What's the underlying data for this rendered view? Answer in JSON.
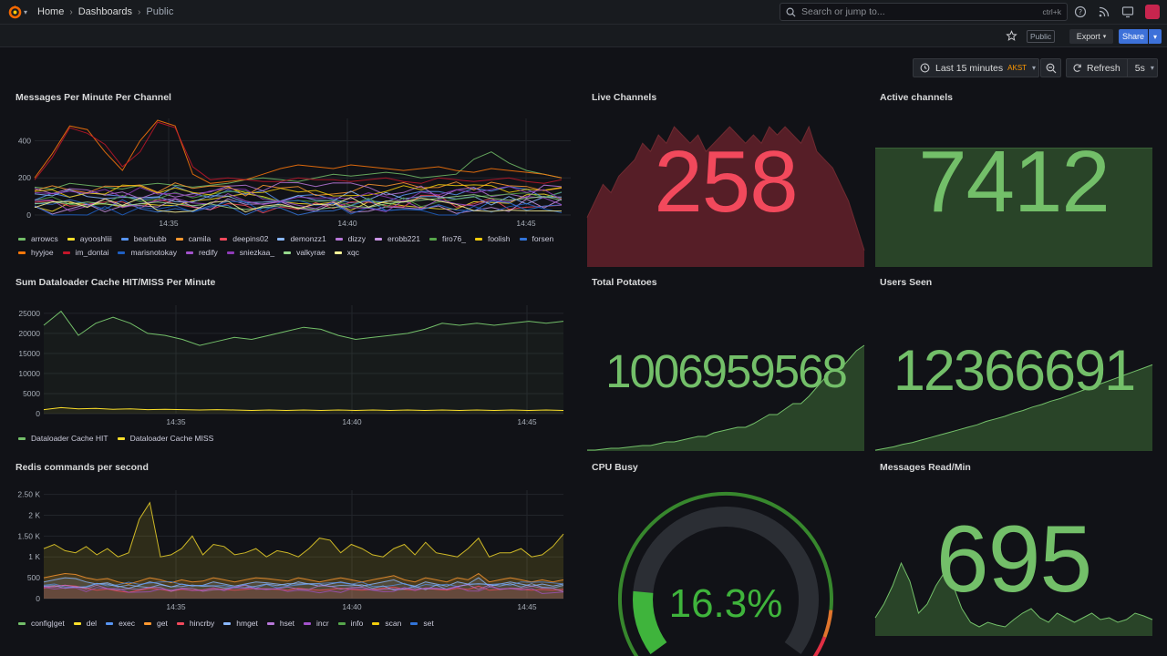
{
  "nav": {
    "breadcrumbs": [
      "Home",
      "Dashboards",
      "Public"
    ],
    "search_placeholder": "Search or jump to...",
    "search_shortcut": "ctrl+k"
  },
  "toolbar": {
    "public_tag": "Public",
    "export_label": "Export",
    "share_label": "Share",
    "time_range": "Last 15 minutes",
    "timezone": "AKST",
    "refresh_label": "Refresh",
    "refresh_interval": "5s"
  },
  "colors": {
    "green": "#73bf69",
    "red": "#f2495c",
    "yellow": "#fade2a",
    "blue": "#5794f2",
    "orange": "#ff9830",
    "purple": "#b877d9"
  },
  "panels": {
    "messages": {
      "title": "Messages Per Minute Per Channel",
      "legend": [
        "arrowcs",
        "ayooshliii",
        "bearbubb",
        "camila",
        "deepins02",
        "demonzz1",
        "dizzy",
        "erobb221",
        "firo76_",
        "foolish",
        "forsen",
        "hyyjoe",
        "im_dontai",
        "marisnotokay",
        "redify",
        "sniezkaa_",
        "valkyrae",
        "xqc"
      ],
      "legend_colors": [
        "#73bf69",
        "#fade2a",
        "#5794f2",
        "#ff9830",
        "#f2495c",
        "#8ab8ff",
        "#b877d9",
        "#ca95e5",
        "#56a64b",
        "#f2cc0c",
        "#3274d9",
        "#ff780a",
        "#c4162a",
        "#1f60c4",
        "#a352cc",
        "#8f3bb8",
        "#96d98d",
        "#fff899"
      ]
    },
    "live_channels": {
      "title": "Live Channels",
      "value": "258"
    },
    "active_channels": {
      "title": "Active channels",
      "value": "7412"
    },
    "cache": {
      "title": "Sum Dataloader Cache HIT/MISS Per Minute",
      "legend": [
        "Dataloader Cache HIT",
        "Dataloader Cache MISS"
      ],
      "legend_colors": [
        "#73bf69",
        "#fade2a"
      ]
    },
    "total_potatoes": {
      "title": "Total Potatoes",
      "value": "1006959568"
    },
    "users_seen": {
      "title": "Users Seen",
      "value": "12366691"
    },
    "redis": {
      "title": "Redis commands per second",
      "legend": [
        "config|get",
        "del",
        "exec",
        "get",
        "hincrby",
        "hmget",
        "hset",
        "incr",
        "info",
        "scan",
        "set"
      ],
      "legend_colors": [
        "#73bf69",
        "#fade2a",
        "#5794f2",
        "#ff9830",
        "#f2495c",
        "#8ab8ff",
        "#b877d9",
        "#a352cc",
        "#56a64b",
        "#f2cc0c",
        "#3274d9"
      ]
    },
    "cpu_busy": {
      "title": "CPU Busy",
      "value": "16.3%",
      "percent": 16.3
    },
    "messages_read": {
      "title": "Messages Read/Min",
      "value": "695"
    }
  },
  "chart_data": [
    {
      "type": "line",
      "title": "Messages Per Minute Per Channel",
      "x_ticks": [
        "14:35",
        "14:40",
        "14:45"
      ],
      "y_ticks": [
        "0",
        "200",
        "400"
      ],
      "ylim": [
        0,
        520
      ],
      "series_approx": {
        "im_dontai": [
          190,
          310,
          470,
          440,
          380,
          260,
          340,
          500,
          470,
          260,
          190,
          200,
          190,
          180,
          180,
          200,
          190,
          190,
          180,
          190,
          200,
          180,
          170,
          200,
          190,
          180,
          190,
          200,
          180,
          170,
          190
        ],
        "hyyjoe": [
          200,
          330,
          480,
          460,
          340,
          240,
          400,
          510,
          480,
          220,
          170,
          180,
          190,
          220,
          250,
          270,
          260,
          250,
          270,
          260,
          250,
          240,
          250,
          260,
          240,
          230,
          250,
          240,
          230,
          220,
          200
        ],
        "arrowcs": [
          150,
          140,
          170,
          160,
          150,
          140,
          160,
          170,
          160,
          150,
          160,
          170,
          190,
          200,
          190,
          180,
          200,
          220,
          210,
          220,
          230,
          220,
          200,
          210,
          220,
          300,
          340,
          280,
          240,
          220,
          200
        ],
        "valkyrae": [
          60,
          70,
          60,
          70,
          60,
          50,
          60,
          70,
          60,
          50,
          60,
          40,
          30,
          40,
          50,
          40,
          30,
          40,
          50,
          40,
          60,
          70,
          80,
          90,
          100,
          110,
          90,
          80,
          90,
          100,
          80
        ]
      }
    },
    {
      "type": "line",
      "title": "Sum Dataloader Cache HIT/MISS Per Minute",
      "x_ticks": [
        "14:35",
        "14:40",
        "14:45"
      ],
      "y_ticks": [
        "0",
        "5000",
        "10000",
        "15000",
        "20000",
        "25000"
      ],
      "ylim": [
        0,
        27000
      ],
      "series": [
        {
          "name": "Dataloader Cache HIT",
          "values": [
            22000,
            25500,
            19500,
            22500,
            24000,
            22500,
            20000,
            19500,
            18500,
            17000,
            18000,
            19000,
            18500,
            19500,
            20500,
            21500,
            21000,
            19500,
            18500,
            19000,
            19500,
            20000,
            21000,
            22500,
            22000,
            22500,
            22000,
            22500,
            23000,
            22500,
            23000
          ]
        },
        {
          "name": "Dataloader Cache MISS",
          "values": [
            1000,
            1500,
            1200,
            1300,
            1100,
            1200,
            1000,
            1100,
            1000,
            900,
            1000,
            900,
            800,
            900,
            800,
            900,
            800,
            900,
            800,
            900,
            800,
            900,
            800,
            900,
            800,
            900,
            800,
            900,
            800,
            900,
            800
          ]
        }
      ]
    },
    {
      "type": "area",
      "title": "Redis commands per second",
      "x_ticks": [
        "14:35",
        "14:40",
        "14:45"
      ],
      "y_ticks": [
        "0",
        "500",
        "1 K",
        "1.50 K",
        "2 K",
        "2.50 K"
      ],
      "ylim": [
        0,
        2600
      ],
      "series_approx": {
        "info": [
          1200,
          1300,
          1150,
          1100,
          1250,
          1050,
          1200,
          1000,
          1100,
          1900,
          2300,
          1000,
          1050,
          1200,
          1500,
          1050,
          1300,
          1250,
          1050,
          1100,
          1200,
          1000,
          1150,
          1100,
          1000,
          1200,
          1450,
          1400,
          1100,
          1300,
          1200,
          1050,
          1000,
          1200,
          1300,
          1050,
          1350,
          1100,
          1050,
          1000,
          1200,
          1450,
          1000,
          1100,
          1100,
          1200,
          1000,
          1050,
          1250,
          1550
        ],
        "get": [
          500,
          550,
          600,
          580,
          500,
          450,
          480,
          400,
          350,
          420,
          500,
          450,
          380,
          450,
          400,
          420,
          500,
          450,
          400,
          450,
          500,
          480,
          450,
          420,
          500,
          450,
          400,
          450,
          500,
          450,
          400,
          450,
          500,
          550,
          450,
          400,
          500,
          450,
          400,
          500,
          450,
          600,
          400,
          450,
          500,
          450,
          400,
          450,
          400,
          450
        ],
        "set": [
          400,
          450,
          500,
          480,
          400,
          350,
          380,
          300,
          250,
          320,
          400,
          350,
          280,
          350,
          300,
          320,
          400,
          350,
          300,
          350,
          400,
          380,
          350,
          320,
          400,
          350,
          300,
          350,
          400,
          350,
          300,
          350,
          400,
          450,
          350,
          300,
          400,
          350,
          300,
          400,
          350,
          500,
          300,
          350,
          400,
          350,
          300,
          350,
          300,
          350
        ],
        "hincrby": [
          250,
          300,
          320,
          300,
          250,
          200,
          230,
          180,
          150,
          200,
          250,
          220,
          180,
          220,
          200,
          210,
          250,
          220,
          200,
          220,
          250,
          230,
          220,
          200,
          250,
          220,
          200,
          220,
          250,
          220,
          200,
          220,
          250,
          280,
          220,
          200,
          250,
          220,
          200,
          250,
          220,
          300,
          200,
          220,
          250,
          220,
          200,
          220,
          200,
          220
        ]
      }
    },
    {
      "type": "area",
      "title": "Live Channels",
      "values": [
        200,
        210,
        220,
        215,
        225,
        230,
        235,
        245,
        240,
        250,
        245,
        255,
        250,
        245,
        250,
        240,
        245,
        250,
        255,
        250,
        245,
        250,
        245,
        255,
        250,
        255,
        250,
        245,
        255,
        240,
        235,
        230,
        220,
        210,
        195,
        180
      ],
      "ylim": [
        170,
        260
      ]
    },
    {
      "type": "area",
      "title": "Active channels",
      "values": [
        7412,
        7412,
        7412,
        7412,
        7412,
        7412,
        7412,
        7412
      ],
      "ylim": [
        7380,
        7420
      ]
    },
    {
      "type": "area",
      "title": "Total Potatoes",
      "values": [
        1,
        1,
        2,
        3,
        3,
        4,
        5,
        6,
        6,
        8,
        10,
        10,
        12,
        14,
        16,
        16,
        20,
        22,
        24,
        26,
        26,
        30,
        35,
        40,
        40,
        46,
        52,
        52,
        60,
        70,
        80,
        90,
        90,
        100,
        110,
        116
      ],
      "ylim": [
        0,
        120
      ]
    },
    {
      "type": "area",
      "title": "Users Seen",
      "values": [
        1,
        3,
        5,
        8,
        10,
        13,
        16,
        19,
        22,
        25,
        28,
        31,
        35,
        38,
        41,
        45,
        48,
        52,
        55,
        59,
        62,
        66,
        70,
        74,
        78,
        82,
        86,
        90,
        94,
        98,
        102
      ],
      "ylim": [
        0,
        110
      ]
    },
    {
      "type": "area",
      "title": "Messages Read/Min",
      "values": [
        20,
        35,
        55,
        80,
        60,
        25,
        35,
        55,
        70,
        55,
        30,
        15,
        10,
        15,
        12,
        10,
        18,
        25,
        30,
        20,
        15,
        25,
        20,
        15,
        20,
        25,
        18,
        20,
        15,
        18,
        25,
        22,
        18
      ],
      "ylim": [
        0,
        90
      ]
    }
  ]
}
